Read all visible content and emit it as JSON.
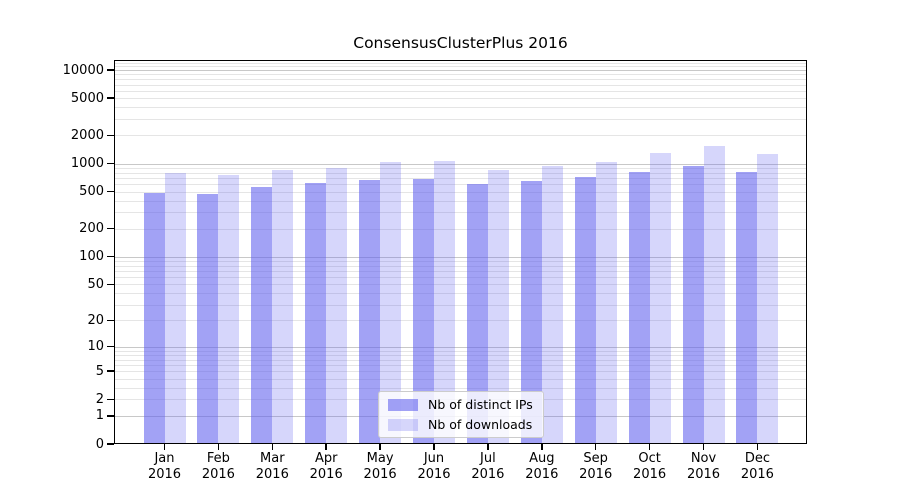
{
  "title": "ConsensusClusterPlus 2016",
  "chart_data": {
    "type": "bar",
    "title": "ConsensusClusterPlus 2016",
    "categories": [
      "Jan",
      "Feb",
      "Mar",
      "Apr",
      "May",
      "Jun",
      "Jul",
      "Aug",
      "Sep",
      "Oct",
      "Nov",
      "Dec"
    ],
    "x_year": "2016",
    "series": [
      {
        "name": "Nb of distinct IPs",
        "values": [
          480,
          475,
          565,
          620,
          665,
          690,
          605,
          645,
          720,
          815,
          940,
          805
        ]
      },
      {
        "name": "Nb of downloads",
        "values": [
          785,
          760,
          860,
          895,
          1045,
          1070,
          860,
          945,
          1050,
          1295,
          1525,
          1260
        ]
      }
    ],
    "y_scale": "logarithmic: position ~ log10(value+1)",
    "y_ticks": [
      10000,
      5000,
      2000,
      1000,
      500,
      200,
      100,
      50,
      20,
      10,
      5,
      2,
      1,
      0
    ],
    "ylim": [
      0,
      12500
    ],
    "grid": "horizontal only; light minor lines within each decade, darker lines at 1,10,100,1000,10000",
    "legend_position": "inside lower center"
  },
  "legend": {
    "items": [
      "Nb of distinct IPs",
      "Nb of downloads"
    ]
  },
  "colors": {
    "bar_distinct_ips_rgba": "rgba(95,95,238,0.58)",
    "bar_downloads_rgba": "rgba(95,95,238,0.26)",
    "bar_distinct_ips_hex": "#a2a2f3",
    "bar_downloads_hex": "#d5d5fa",
    "grid_major": "#c8c8c8",
    "grid_minor": "#e5e5e5",
    "spine": "#000000",
    "text": "#000000",
    "legend_border": "#cccccc"
  }
}
